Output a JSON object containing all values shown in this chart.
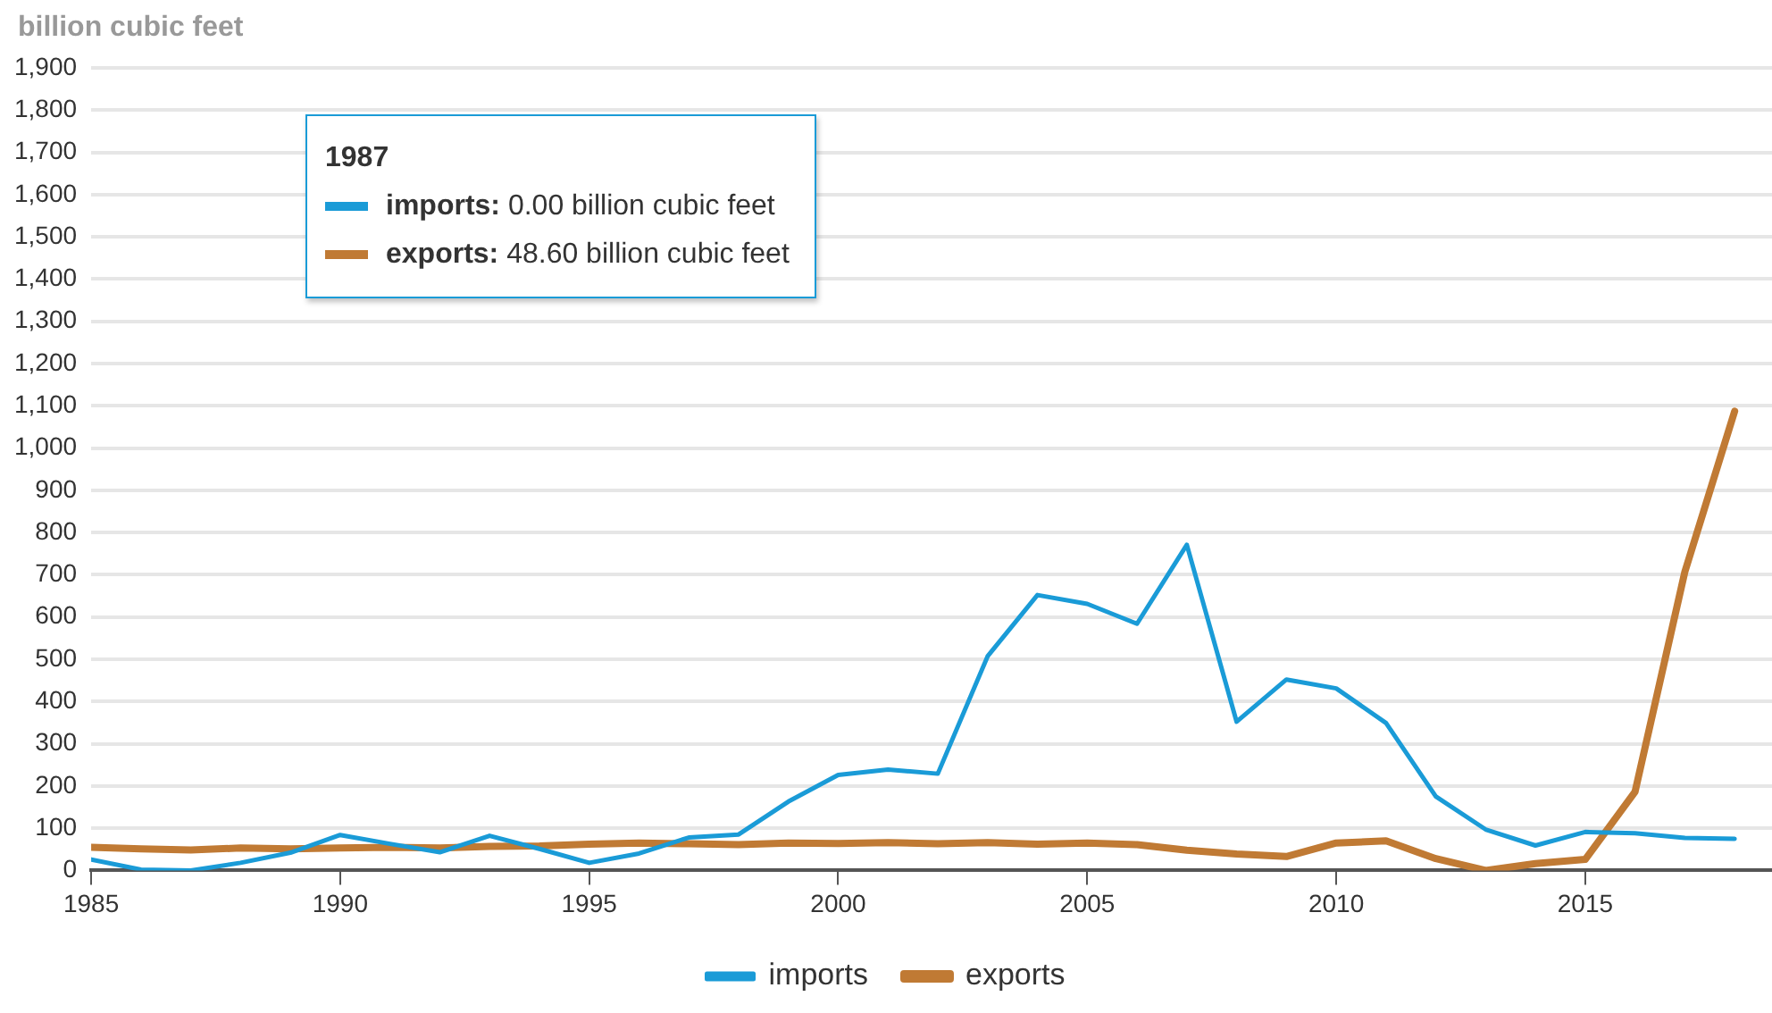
{
  "chart_data": {
    "type": "line",
    "ylabel": "billion cubic feet",
    "x": [
      1985,
      1986,
      1987,
      1988,
      1989,
      1990,
      1991,
      1992,
      1993,
      1994,
      1995,
      1996,
      1997,
      1998,
      1999,
      2000,
      2001,
      2002,
      2003,
      2004,
      2005,
      2006,
      2007,
      2008,
      2009,
      2010,
      2011,
      2012,
      2013,
      2014,
      2015,
      2016,
      2017,
      2018
    ],
    "series": [
      {
        "name": "imports",
        "color": "#1a9bd7",
        "values": [
          26,
          2,
          0,
          18,
          42,
          84,
          63,
          43,
          82,
          51,
          18,
          40,
          78,
          85,
          163,
          226,
          239,
          229,
          507,
          652,
          631,
          584,
          771,
          352,
          452,
          431,
          349,
          175,
          97,
          59,
          91,
          88,
          77,
          75
        ]
      },
      {
        "name": "exports",
        "color": "#c07a34",
        "values": [
          55,
          51,
          48.6,
          53,
          51,
          53,
          55,
          53,
          57,
          58,
          62,
          65,
          63,
          61,
          65,
          64,
          66,
          63,
          66,
          62,
          65,
          61,
          48,
          39,
          33,
          65,
          70,
          28,
          0,
          16,
          26,
          186,
          707,
          1087
        ]
      }
    ],
    "xlim": [
      1985,
      2018.75
    ],
    "xticks": [
      1985,
      1990,
      1995,
      2000,
      2005,
      2010,
      2015
    ],
    "ylim": [
      0,
      1900
    ],
    "yticks": [
      0,
      100,
      200,
      300,
      400,
      500,
      600,
      700,
      800,
      900,
      {
        "value": 1000,
        "label": "1,000"
      },
      {
        "value": 1100,
        "label": "1,100"
      },
      {
        "value": 1200,
        "label": "1,200"
      },
      {
        "value": 1300,
        "label": "1,300"
      },
      {
        "value": 1400,
        "label": "1,400"
      },
      {
        "value": 1500,
        "label": "1,500"
      },
      {
        "value": 1600,
        "label": "1,600"
      },
      {
        "value": 1700,
        "label": "1,700"
      },
      {
        "value": 1800,
        "label": "1,800"
      },
      {
        "value": 1900,
        "label": "1,900"
      }
    ],
    "grid": "y",
    "legend": "bottom",
    "marker": "none",
    "line_style": "solid",
    "annotations": [
      "1987",
      "imports: 0.00 billion cubic feet",
      "exports: 48.60 billion cubic feet"
    ]
  }
}
